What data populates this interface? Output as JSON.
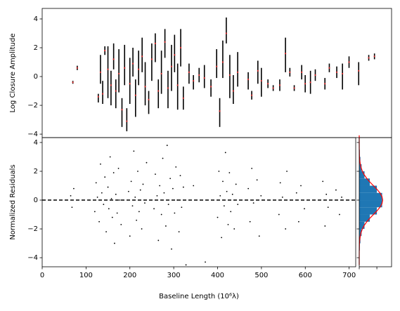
{
  "chart_data": [
    {
      "type": "errorbar",
      "ylabel": "Log Closure Amplitude",
      "color": "#000000",
      "model_color": "#d62728",
      "xlim": [
        0,
        797
      ],
      "ylim": [
        -4.24,
        4.73
      ],
      "yticks": [
        {
          "value": -4,
          "label": "−4"
        },
        {
          "value": -2,
          "label": "−2"
        },
        0,
        2,
        4
      ],
      "x": [
        70,
        80,
        128,
        133,
        138,
        143,
        150,
        157,
        163,
        168,
        175,
        182,
        188,
        193,
        200,
        207,
        213,
        220,
        228,
        235,
        243,
        250,
        258,
        265,
        272,
        280,
        287,
        295,
        302,
        309,
        316,
        322,
        335,
        345,
        358,
        370,
        385,
        398,
        405,
        412,
        420,
        428,
        436,
        446,
        470,
        478,
        492,
        500,
        515,
        527,
        542,
        555,
        565,
        575,
        592,
        600,
        612,
        623,
        645,
        655,
        672,
        685,
        700,
        722,
        745,
        758
      ],
      "values": [
        -0.4,
        0.6,
        -1.5,
        0.5,
        -1.1,
        1.8,
        0.3,
        -0.8,
        1.4,
        -1.2,
        0.4,
        -2.5,
        0.8,
        -3.0,
        -0.3,
        1.0,
        -1.5,
        0.6,
        1.5,
        -0.5,
        -1.8,
        1.0,
        2.0,
        -1.2,
        0.3,
        2.3,
        -0.9,
        0.6,
        1.6,
        -0.7,
        2.0,
        -1.5,
        0.2,
        -0.4,
        0.1,
        0.0,
        -0.8,
        0.9,
        -2.5,
        1.2,
        3.2,
        0.0,
        -0.9,
        0.5,
        -0.3,
        -1.3,
        0.3,
        -0.4,
        -0.5,
        -0.8,
        -0.6,
        1.5,
        0.3,
        -0.8,
        0.3,
        -0.5,
        -0.4,
        0.1,
        -0.5,
        0.6,
        0.3,
        0.0,
        1.0,
        0.2,
        1.3,
        1.4
      ],
      "errors": [
        0.1,
        0.15,
        0.3,
        1.0,
        0.8,
        0.3,
        1.8,
        1.2,
        0.9,
        1.0,
        1.5,
        1.0,
        1.4,
        0.8,
        1.6,
        1.0,
        1.3,
        1.2,
        1.2,
        1.5,
        0.8,
        1.3,
        1.0,
        1.0,
        1.5,
        1.0,
        1.3,
        1.6,
        1.3,
        1.6,
        1.3,
        0.8,
        0.7,
        0.5,
        0.5,
        0.8,
        0.6,
        1.0,
        1.0,
        1.3,
        0.9,
        1.5,
        1.0,
        1.2,
        0.6,
        0.3,
        0.8,
        1.0,
        0.3,
        0.2,
        0.4,
        1.2,
        0.3,
        0.2,
        0.5,
        0.6,
        0.8,
        0.4,
        0.4,
        0.3,
        0.4,
        0.9,
        0.4,
        0.8,
        0.2,
        0.2
      ],
      "model_values": [
        -0.4,
        0.6,
        -1.4,
        0.3,
        -1.2,
        1.8,
        0.5,
        -0.6,
        1.2,
        -1.0,
        0.2,
        -2.3,
        0.6,
        -3.1,
        -0.5,
        0.9,
        -1.3,
        0.5,
        1.4,
        -0.7,
        -1.6,
        1.2,
        2.3,
        -1.0,
        0.2,
        2.4,
        -0.8,
        0.7,
        1.5,
        -0.6,
        2.0,
        -1.5,
        0.3,
        -0.3,
        0.1,
        -0.1,
        -0.7,
        0.7,
        -2.4,
        1.0,
        3.0,
        0.1,
        -1.0,
        0.3,
        -0.2,
        -1.3,
        0.4,
        -0.3,
        -0.5,
        -0.8,
        -0.6,
        1.6,
        0.3,
        -0.8,
        0.3,
        -0.5,
        -0.4,
        0.1,
        -0.5,
        0.6,
        0.3,
        0.2,
        1.0,
        0.4,
        1.3,
        1.4
      ]
    },
    {
      "type": "scatter",
      "ylabel": "Normalized Residuals",
      "xlabel": "Baseline Length (10⁶λ)",
      "color": "#000000",
      "xlim": [
        0,
        715
      ],
      "ylim": [
        -4.63,
        4.34
      ],
      "xticks": [
        0,
        100,
        200,
        300,
        400,
        500,
        600,
        700
      ],
      "yticks": [
        {
          "value": -4,
          "label": "−4"
        },
        {
          "value": -2,
          "label": "−2"
        },
        0,
        2,
        4
      ],
      "hline": 0,
      "x": [
        65,
        68,
        72,
        120,
        123,
        126,
        130,
        133,
        136,
        140,
        143,
        146,
        150,
        152,
        155,
        158,
        160,
        163,
        165,
        168,
        171,
        174,
        177,
        180,
        197,
        200,
        203,
        206,
        209,
        212,
        215,
        218,
        221,
        224,
        227,
        230,
        234,
        238,
        255,
        258,
        262,
        265,
        268,
        272,
        275,
        278,
        282,
        285,
        288,
        292,
        295,
        298,
        302,
        305,
        308,
        312,
        315,
        318,
        322,
        328,
        345,
        372,
        400,
        403,
        406,
        409,
        412,
        415,
        418,
        421,
        424,
        427,
        430,
        434,
        438,
        442,
        446,
        470,
        474,
        478,
        482,
        490,
        495,
        499,
        540,
        543,
        548,
        555,
        558,
        580,
        585,
        590,
        598,
        640,
        645,
        648,
        652,
        670,
        678,
        683
      ],
      "values": [
        0.3,
        -0.5,
        0.8,
        -0.8,
        1.2,
        0.2,
        -1.5,
        2.5,
        0.5,
        -0.3,
        1.6,
        -2.2,
        0.9,
        -0.6,
        3.0,
        0.1,
        -1.2,
        1.9,
        -3.0,
        0.4,
        -0.9,
        2.2,
        0.0,
        -1.7,
        0.6,
        -2.5,
        1.3,
        -0.4,
        3.4,
        0.2,
        -1.4,
        2.0,
        -0.8,
        0.7,
        -2.0,
        1.1,
        -0.2,
        2.6,
        -0.6,
        1.8,
        0.3,
        -2.8,
        1.0,
        -1.0,
        2.9,
        0.5,
        -1.8,
        3.8,
        -0.3,
        1.5,
        -3.4,
        0.8,
        -0.9,
        2.3,
        0.0,
        -2.2,
        1.7,
        -0.5,
        0.9,
        -4.5,
        1.0,
        -4.3,
        -1.2,
        2.0,
        0.3,
        -2.6,
        1.3,
        -0.4,
        3.3,
        0.6,
        -1.7,
        1.9,
        -0.8,
        0.4,
        -2.0,
        1.1,
        -0.3,
        0.8,
        -1.5,
        2.2,
        -0.2,
        1.4,
        -2.5,
        0.3,
        -1.0,
        1.2,
        0.2,
        -2.0,
        2.0,
        0.5,
        -1.5,
        1.0,
        -0.6,
        1.3,
        -1.8,
        0.4,
        -0.5,
        0.7,
        -1.0,
        0.2
      ]
    },
    {
      "type": "histogram",
      "orientation": "horizontal",
      "color": "#1f77b4",
      "curve_color": "#ff0000",
      "xlim": [
        0,
        0.55
      ],
      "ylim": [
        -4.63,
        4.34
      ],
      "xticks": [
        0,
        0.3
      ],
      "yticks": [
        -4,
        -2,
        0,
        2,
        4
      ],
      "bins": [
        -4.5,
        -4,
        -3.5,
        -3,
        -2.5,
        -2,
        -1.5,
        -1,
        -0.5,
        0,
        0.5,
        1,
        1.5,
        2,
        2.5,
        3,
        3.5,
        4,
        4.5
      ],
      "values": [
        0.001,
        0.004,
        0.01,
        0.02,
        0.04,
        0.09,
        0.18,
        0.3,
        0.39,
        0.39,
        0.3,
        0.18,
        0.09,
        0.04,
        0.02,
        0.01,
        0.004,
        0.001
      ],
      "curve": {
        "y": [
          -4.5,
          -4.25,
          -4,
          -3.75,
          -3.5,
          -3.25,
          -3,
          -2.75,
          -2.5,
          -2.25,
          -2,
          -1.75,
          -1.5,
          -1.25,
          -1,
          -0.75,
          -0.5,
          -0.25,
          0,
          0.25,
          0.5,
          0.75,
          1,
          1.25,
          1.5,
          1.75,
          2,
          2.25,
          2.5,
          2.75,
          3,
          3.25,
          3.5,
          3.75,
          4,
          4.25,
          4.5
        ],
        "density": [
          2e-05,
          5e-05,
          0.00013,
          0.00035,
          0.00087,
          0.002,
          0.0044,
          0.0091,
          0.0175,
          0.0317,
          0.054,
          0.0863,
          0.1295,
          0.1826,
          0.242,
          0.3011,
          0.3521,
          0.3867,
          0.3989,
          0.3867,
          0.3521,
          0.3011,
          0.242,
          0.1826,
          0.1295,
          0.0863,
          0.054,
          0.0317,
          0.0175,
          0.0091,
          0.0044,
          0.002,
          0.00087,
          0.00035,
          0.00013,
          5e-05,
          2e-05
        ]
      }
    }
  ]
}
